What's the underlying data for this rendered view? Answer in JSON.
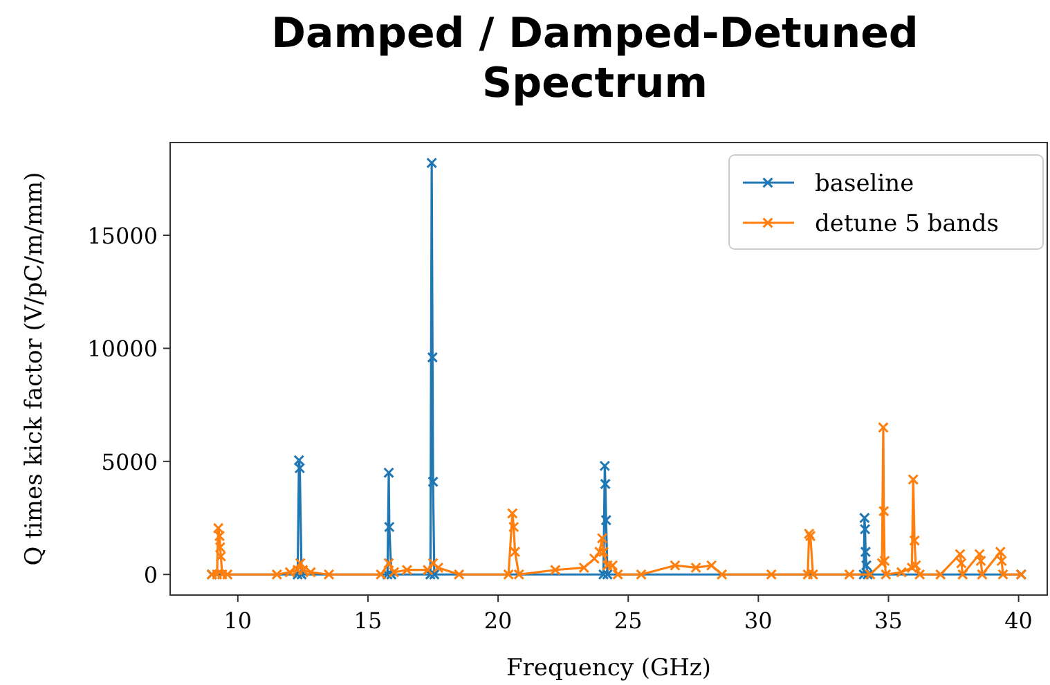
{
  "chart_data": {
    "type": "line",
    "title": "Damped / Damped-Detuned Spectrum",
    "xlabel": "Frequency (GHz)",
    "ylabel": "Q times kick factor (V/pC/m/mm)",
    "xlim": [
      7.4,
      41.1
    ],
    "ylim": [
      -910,
      19100
    ],
    "xticks": [
      10,
      15,
      20,
      25,
      30,
      35,
      40
    ],
    "yticks": [
      0,
      5000,
      10000,
      15000
    ],
    "grid": false,
    "legend": "top right",
    "marker": "cross",
    "line_style": "solid",
    "series": [
      {
        "name": "baseline",
        "color": "#1f77b4",
        "x": [
          9.0,
          12.3,
          12.35,
          12.38,
          12.45,
          15.75,
          15.8,
          15.82,
          15.9,
          17.4,
          17.45,
          17.48,
          17.5,
          17.55,
          24.05,
          24.1,
          24.12,
          24.15,
          24.2,
          34.05,
          34.08,
          34.1,
          34.12,
          34.15,
          34.2,
          40.1
        ],
        "values": [
          0,
          0,
          5050,
          4700,
          0,
          0,
          4500,
          2100,
          0,
          0,
          18200,
          9600,
          4100,
          0,
          0,
          4800,
          4000,
          2400,
          0,
          0,
          2500,
          2000,
          1000,
          400,
          0,
          0
        ]
      },
      {
        "name": "detune 5 bands",
        "color": "#ff7f0e",
        "x": [
          9.0,
          9.2,
          9.25,
          9.3,
          9.32,
          9.35,
          9.4,
          9.6,
          11.5,
          12.0,
          12.3,
          12.4,
          12.5,
          12.8,
          13.5,
          15.5,
          15.8,
          16.0,
          16.5,
          17.3,
          17.5,
          17.7,
          18.5,
          20.4,
          20.55,
          20.6,
          20.65,
          20.8,
          22.2,
          23.3,
          23.7,
          23.9,
          24.0,
          24.05,
          24.2,
          24.4,
          24.6,
          25.5,
          26.8,
          27.6,
          28.2,
          28.6,
          30.5,
          31.9,
          31.95,
          32.0,
          32.1,
          33.5,
          34.3,
          34.75,
          34.8,
          34.82,
          34.85,
          34.9,
          35.5,
          35.9,
          35.95,
          36.0,
          36.05,
          36.2,
          37.0,
          37.75,
          37.8,
          37.85,
          38.5,
          38.55,
          38.6,
          39.3,
          39.35,
          39.4,
          40.1
        ],
        "values": [
          0,
          0,
          2050,
          1700,
          1200,
          800,
          0,
          0,
          0,
          100,
          200,
          500,
          200,
          100,
          0,
          0,
          500,
          100,
          200,
          200,
          500,
          300,
          0,
          0,
          2700,
          2100,
          1000,
          0,
          200,
          300,
          700,
          1000,
          1600,
          1000,
          400,
          400,
          0,
          0,
          400,
          300,
          400,
          0,
          0,
          0,
          1800,
          1700,
          0,
          0,
          0,
          500,
          6500,
          2800,
          600,
          0,
          100,
          300,
          4200,
          1500,
          400,
          0,
          0,
          900,
          500,
          0,
          900,
          600,
          0,
          1000,
          600,
          0,
          0
        ]
      }
    ]
  }
}
